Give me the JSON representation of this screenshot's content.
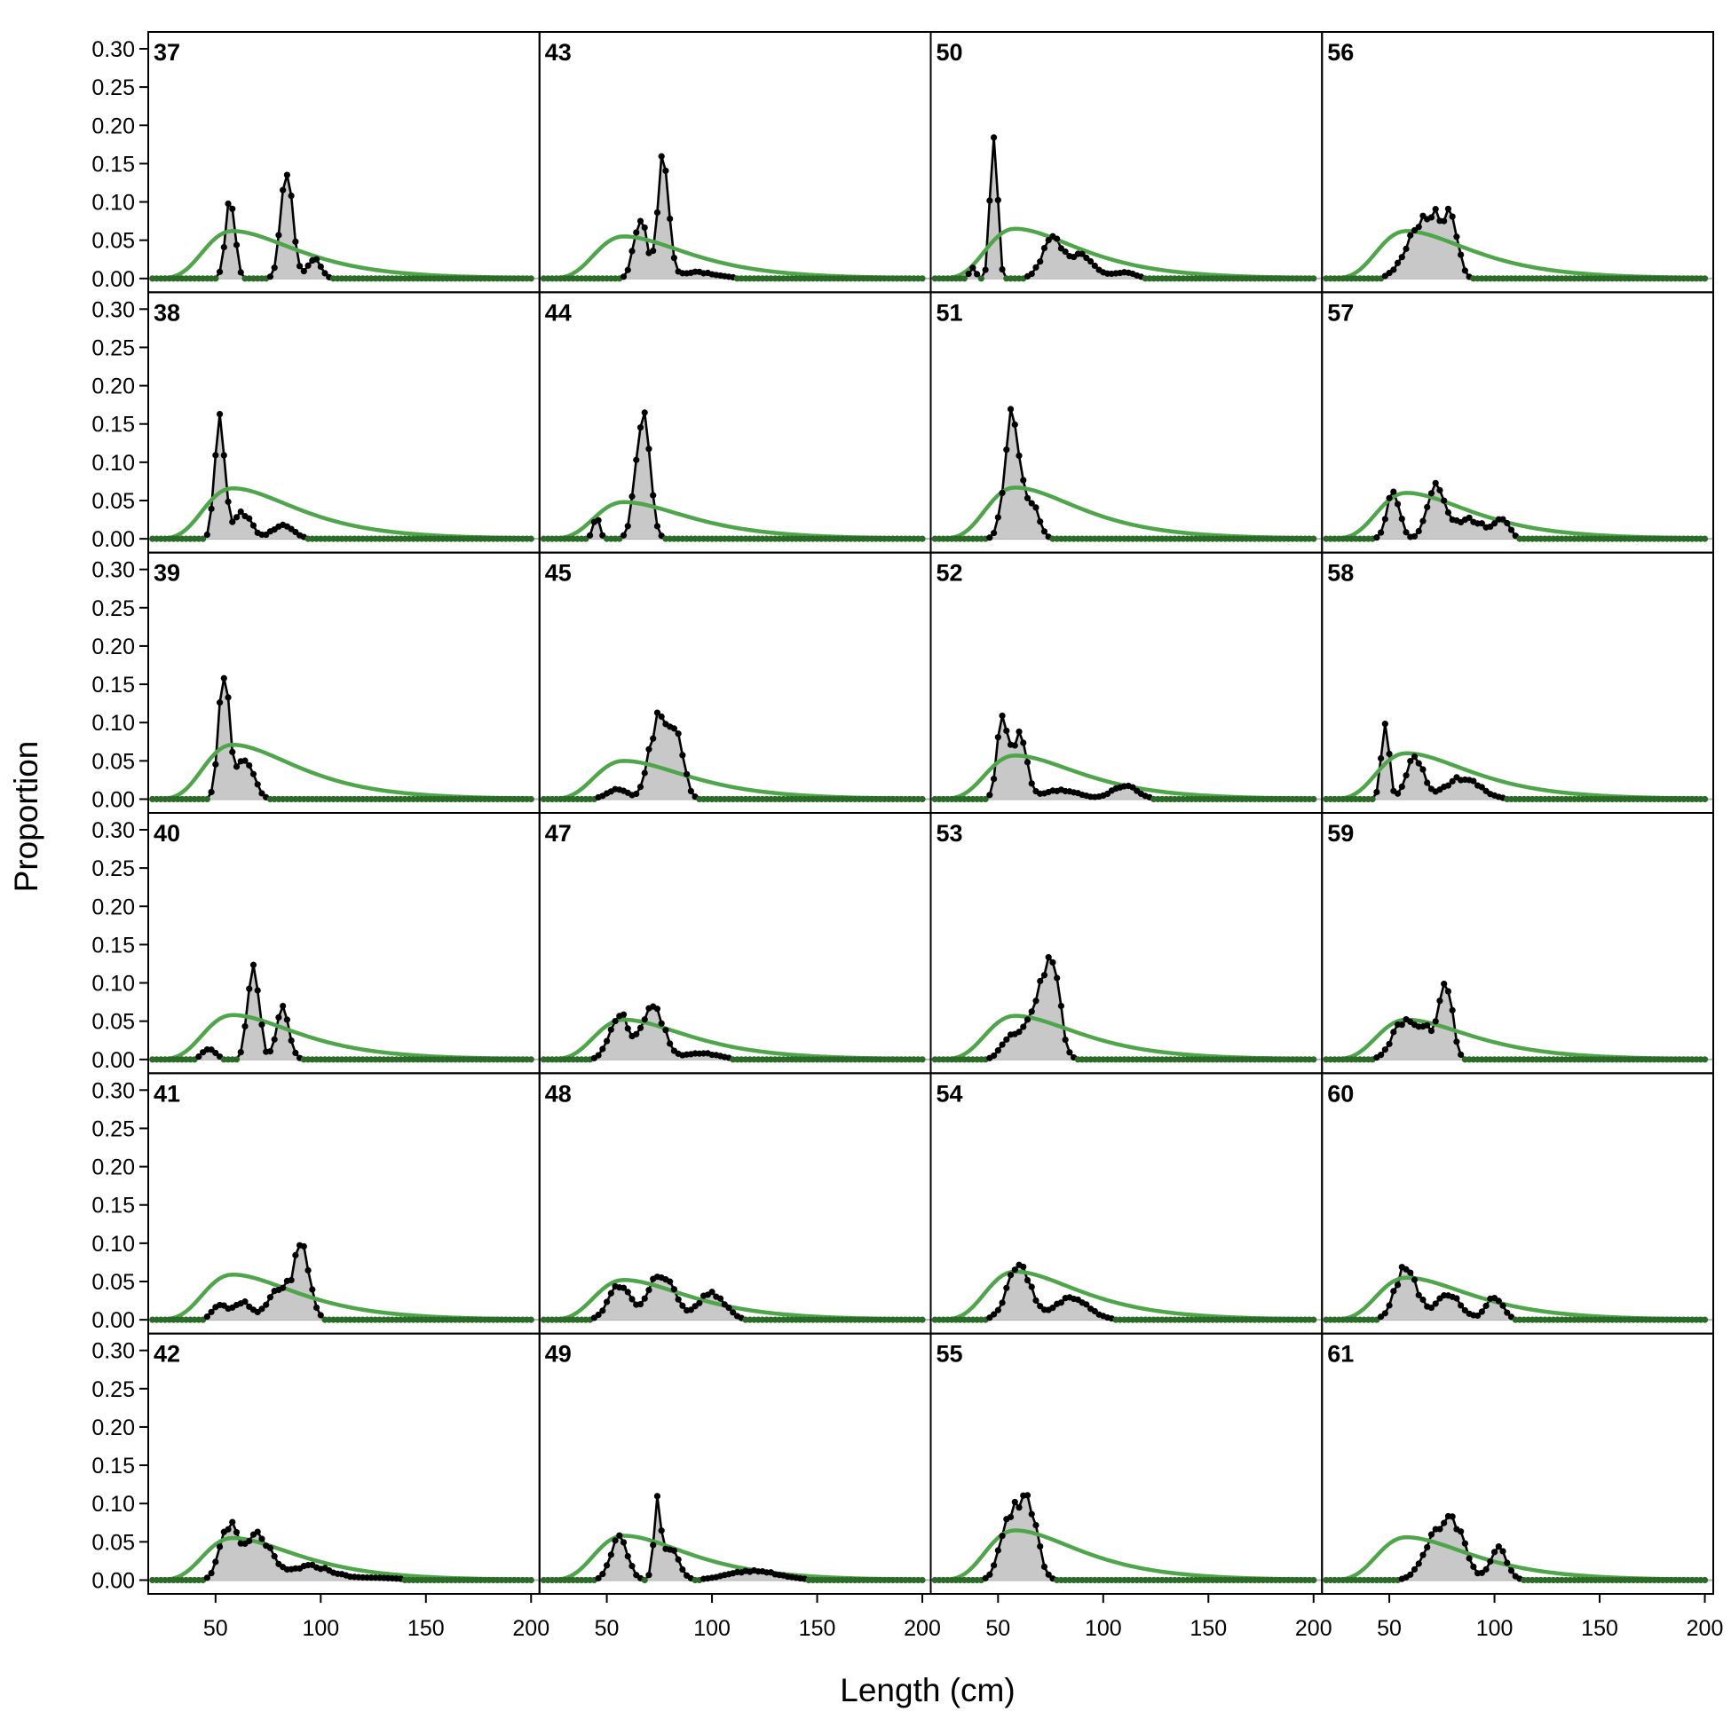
{
  "chart_data": {
    "type": "line",
    "xlabel": "Length (cm)",
    "ylabel": "Proportion",
    "xlim": [
      18,
      204
    ],
    "ylim": [
      -0.018,
      0.322
    ],
    "x_ticks": [
      50,
      100,
      150,
      200
    ],
    "y_ticks": [
      0.0,
      0.05,
      0.1,
      0.15,
      0.2,
      0.25,
      0.3
    ],
    "y_tick_labels": [
      "0.00",
      "0.05",
      "0.10",
      "0.15",
      "0.20",
      "0.25",
      "0.30"
    ],
    "x_tick_labels": [
      "50",
      "100",
      "150",
      "200"
    ],
    "layout": {
      "rows": 6,
      "cols": 4,
      "order": "column-major"
    },
    "bin_range": [
      20,
      200
    ],
    "bin_step": 2,
    "colors": {
      "observed_line": "#000000",
      "observed_fill": "#c8c8c8",
      "expected_line": "#4fa64a",
      "zero_line": "#b4b4b4"
    },
    "series_names": [
      "observed",
      "expected"
    ],
    "panels": [
      {
        "label": "37",
        "obs": [
          [
            57,
            0.105,
            2.2
          ],
          [
            84,
            0.142,
            2.8
          ],
          [
            97,
            0.025,
            3
          ]
        ],
        "exp": [
          58,
          0.062
        ]
      },
      {
        "label": "38",
        "obs": [
          [
            52,
            0.165,
            2.3
          ],
          [
            63,
            0.034,
            4
          ],
          [
            82,
            0.018,
            5
          ]
        ],
        "exp": [
          58,
          0.066
        ]
      },
      {
        "label": "39",
        "obs": [
          [
            54,
            0.157,
            2.5
          ],
          [
            64,
            0.055,
            4
          ]
        ],
        "exp": [
          58,
          0.071
        ]
      },
      {
        "label": "40",
        "obs": [
          [
            47,
            0.015,
            3
          ],
          [
            68,
            0.133,
            2.6
          ],
          [
            82,
            0.065,
            3
          ]
        ],
        "exp": [
          58,
          0.058
        ]
      },
      {
        "label": "41",
        "obs": [
          [
            52,
            0.02,
            3.5
          ],
          [
            63,
            0.022,
            4
          ],
          [
            80,
            0.04,
            5
          ],
          [
            91,
            0.092,
            3.8
          ]
        ],
        "exp": [
          58,
          0.059
        ]
      },
      {
        "label": "42",
        "obs": [
          [
            56,
            0.07,
            4
          ],
          [
            70,
            0.058,
            6
          ],
          [
            95,
            0.018,
            10
          ],
          [
            125,
            0.003,
            12
          ]
        ],
        "exp": [
          58,
          0.055
        ]
      },
      {
        "label": "43",
        "obs": [
          [
            66,
            0.08,
            3
          ],
          [
            77,
            0.158,
            2.5
          ],
          [
            92,
            0.008,
            10
          ]
        ],
        "exp": [
          58,
          0.055
        ]
      },
      {
        "label": "44",
        "obs": [
          [
            45,
            0.03,
            1.5
          ],
          [
            67,
            0.168,
            3.3
          ]
        ],
        "exp": [
          58,
          0.048
        ]
      },
      {
        "label": "45",
        "obs": [
          [
            55,
            0.012,
            5
          ],
          [
            74,
            0.1,
            4
          ],
          [
            83,
            0.085,
            3.5
          ]
        ],
        "exp": [
          58,
          0.05
        ]
      },
      {
        "label": "47",
        "obs": [
          [
            56,
            0.06,
            4.5
          ],
          [
            72,
            0.07,
            5
          ],
          [
            95,
            0.008,
            8
          ]
        ],
        "exp": [
          58,
          0.052
        ]
      },
      {
        "label": "48",
        "obs": [
          [
            56,
            0.045,
            5
          ],
          [
            76,
            0.06,
            6
          ],
          [
            100,
            0.035,
            6
          ]
        ],
        "exp": [
          58,
          0.052
        ]
      },
      {
        "label": "49",
        "obs": [
          [
            56,
            0.055,
            4
          ],
          [
            74,
            0.095,
            1.6
          ],
          [
            80,
            0.04,
            4
          ],
          [
            120,
            0.012,
            12
          ]
        ],
        "exp": [
          58,
          0.058
        ]
      },
      {
        "label": "50",
        "obs": [
          [
            38,
            0.015,
            1.5
          ],
          [
            48,
            0.2,
            1.7
          ],
          [
            76,
            0.05,
            5
          ],
          [
            90,
            0.028,
            6
          ],
          [
            110,
            0.008,
            5
          ]
        ],
        "exp": [
          58,
          0.065
        ]
      },
      {
        "label": "51",
        "obs": [
          [
            57,
            0.168,
            3.6
          ],
          [
            67,
            0.04,
            3
          ]
        ],
        "exp": [
          58,
          0.067
        ]
      },
      {
        "label": "52",
        "obs": [
          [
            52,
            0.105,
            2.5
          ],
          [
            60,
            0.085,
            3.5
          ],
          [
            80,
            0.012,
            8
          ],
          [
            110,
            0.018,
            6
          ]
        ],
        "exp": [
          58,
          0.057
        ]
      },
      {
        "label": "53",
        "obs": [
          [
            55,
            0.022,
            4
          ],
          [
            68,
            0.06,
            6
          ],
          [
            75,
            0.085,
            4
          ],
          [
            78,
            0.03,
            2
          ]
        ],
        "exp": [
          58,
          0.057
        ]
      },
      {
        "label": "54",
        "obs": [
          [
            60,
            0.07,
            5.5
          ],
          [
            85,
            0.028,
            8
          ]
        ],
        "exp": [
          58,
          0.063
        ]
      },
      {
        "label": "55",
        "obs": [
          [
            56,
            0.085,
            4.5
          ],
          [
            65,
            0.09,
            4
          ]
        ],
        "exp": [
          58,
          0.065
        ]
      },
      {
        "label": "56",
        "obs": [
          [
            62,
            0.05,
            6
          ],
          [
            72,
            0.07,
            5
          ],
          [
            80,
            0.06,
            3
          ]
        ],
        "exp": [
          58,
          0.062
        ]
      },
      {
        "label": "57",
        "obs": [
          [
            52,
            0.06,
            3
          ],
          [
            72,
            0.065,
            4
          ],
          [
            88,
            0.025,
            8
          ],
          [
            104,
            0.025,
            3
          ]
        ],
        "exp": [
          58,
          0.06
        ]
      },
      {
        "label": "58",
        "obs": [
          [
            48,
            0.105,
            1.8
          ],
          [
            62,
            0.055,
            4
          ],
          [
            85,
            0.028,
            8
          ]
        ],
        "exp": [
          58,
          0.06
        ]
      },
      {
        "label": "59",
        "obs": [
          [
            56,
            0.045,
            5
          ],
          [
            67,
            0.04,
            5
          ],
          [
            77,
            0.095,
            3
          ]
        ],
        "exp": [
          58,
          0.052
        ]
      },
      {
        "label": "60",
        "obs": [
          [
            58,
            0.07,
            5
          ],
          [
            78,
            0.032,
            6
          ],
          [
            100,
            0.028,
            4
          ]
        ],
        "exp": [
          58,
          0.055
        ]
      },
      {
        "label": "61",
        "obs": [
          [
            72,
            0.055,
            6
          ],
          [
            82,
            0.06,
            5
          ],
          [
            102,
            0.04,
            4
          ]
        ],
        "exp": [
          58,
          0.056
        ]
      }
    ]
  }
}
